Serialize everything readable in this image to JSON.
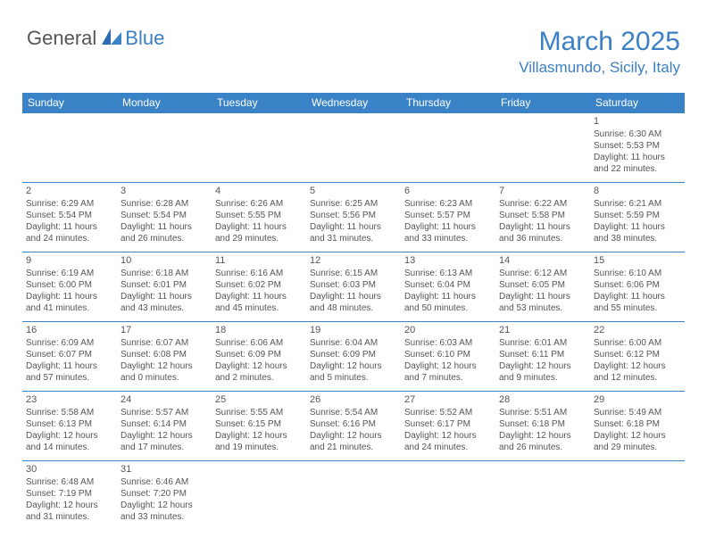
{
  "logo": {
    "general": "General",
    "blue": "Blue"
  },
  "title": "March 2025",
  "location": "Villasmundo, Sicily, Italy",
  "colors": {
    "header_bg": "#3b83c7",
    "header_text": "#ffffff",
    "accent": "#3b7fc4",
    "border": "#3b83c7",
    "body_text": "#555555"
  },
  "weekdays": [
    "Sunday",
    "Monday",
    "Tuesday",
    "Wednesday",
    "Thursday",
    "Friday",
    "Saturday"
  ],
  "days": {
    "1": {
      "sunrise": "Sunrise: 6:30 AM",
      "sunset": "Sunset: 5:53 PM",
      "day1": "Daylight: 11 hours",
      "day2": "and 22 minutes."
    },
    "2": {
      "sunrise": "Sunrise: 6:29 AM",
      "sunset": "Sunset: 5:54 PM",
      "day1": "Daylight: 11 hours",
      "day2": "and 24 minutes."
    },
    "3": {
      "sunrise": "Sunrise: 6:28 AM",
      "sunset": "Sunset: 5:54 PM",
      "day1": "Daylight: 11 hours",
      "day2": "and 26 minutes."
    },
    "4": {
      "sunrise": "Sunrise: 6:26 AM",
      "sunset": "Sunset: 5:55 PM",
      "day1": "Daylight: 11 hours",
      "day2": "and 29 minutes."
    },
    "5": {
      "sunrise": "Sunrise: 6:25 AM",
      "sunset": "Sunset: 5:56 PM",
      "day1": "Daylight: 11 hours",
      "day2": "and 31 minutes."
    },
    "6": {
      "sunrise": "Sunrise: 6:23 AM",
      "sunset": "Sunset: 5:57 PM",
      "day1": "Daylight: 11 hours",
      "day2": "and 33 minutes."
    },
    "7": {
      "sunrise": "Sunrise: 6:22 AM",
      "sunset": "Sunset: 5:58 PM",
      "day1": "Daylight: 11 hours",
      "day2": "and 36 minutes."
    },
    "8": {
      "sunrise": "Sunrise: 6:21 AM",
      "sunset": "Sunset: 5:59 PM",
      "day1": "Daylight: 11 hours",
      "day2": "and 38 minutes."
    },
    "9": {
      "sunrise": "Sunrise: 6:19 AM",
      "sunset": "Sunset: 6:00 PM",
      "day1": "Daylight: 11 hours",
      "day2": "and 41 minutes."
    },
    "10": {
      "sunrise": "Sunrise: 6:18 AM",
      "sunset": "Sunset: 6:01 PM",
      "day1": "Daylight: 11 hours",
      "day2": "and 43 minutes."
    },
    "11": {
      "sunrise": "Sunrise: 6:16 AM",
      "sunset": "Sunset: 6:02 PM",
      "day1": "Daylight: 11 hours",
      "day2": "and 45 minutes."
    },
    "12": {
      "sunrise": "Sunrise: 6:15 AM",
      "sunset": "Sunset: 6:03 PM",
      "day1": "Daylight: 11 hours",
      "day2": "and 48 minutes."
    },
    "13": {
      "sunrise": "Sunrise: 6:13 AM",
      "sunset": "Sunset: 6:04 PM",
      "day1": "Daylight: 11 hours",
      "day2": "and 50 minutes."
    },
    "14": {
      "sunrise": "Sunrise: 6:12 AM",
      "sunset": "Sunset: 6:05 PM",
      "day1": "Daylight: 11 hours",
      "day2": "and 53 minutes."
    },
    "15": {
      "sunrise": "Sunrise: 6:10 AM",
      "sunset": "Sunset: 6:06 PM",
      "day1": "Daylight: 11 hours",
      "day2": "and 55 minutes."
    },
    "16": {
      "sunrise": "Sunrise: 6:09 AM",
      "sunset": "Sunset: 6:07 PM",
      "day1": "Daylight: 11 hours",
      "day2": "and 57 minutes."
    },
    "17": {
      "sunrise": "Sunrise: 6:07 AM",
      "sunset": "Sunset: 6:08 PM",
      "day1": "Daylight: 12 hours",
      "day2": "and 0 minutes."
    },
    "18": {
      "sunrise": "Sunrise: 6:06 AM",
      "sunset": "Sunset: 6:09 PM",
      "day1": "Daylight: 12 hours",
      "day2": "and 2 minutes."
    },
    "19": {
      "sunrise": "Sunrise: 6:04 AM",
      "sunset": "Sunset: 6:09 PM",
      "day1": "Daylight: 12 hours",
      "day2": "and 5 minutes."
    },
    "20": {
      "sunrise": "Sunrise: 6:03 AM",
      "sunset": "Sunset: 6:10 PM",
      "day1": "Daylight: 12 hours",
      "day2": "and 7 minutes."
    },
    "21": {
      "sunrise": "Sunrise: 6:01 AM",
      "sunset": "Sunset: 6:11 PM",
      "day1": "Daylight: 12 hours",
      "day2": "and 9 minutes."
    },
    "22": {
      "sunrise": "Sunrise: 6:00 AM",
      "sunset": "Sunset: 6:12 PM",
      "day1": "Daylight: 12 hours",
      "day2": "and 12 minutes."
    },
    "23": {
      "sunrise": "Sunrise: 5:58 AM",
      "sunset": "Sunset: 6:13 PM",
      "day1": "Daylight: 12 hours",
      "day2": "and 14 minutes."
    },
    "24": {
      "sunrise": "Sunrise: 5:57 AM",
      "sunset": "Sunset: 6:14 PM",
      "day1": "Daylight: 12 hours",
      "day2": "and 17 minutes."
    },
    "25": {
      "sunrise": "Sunrise: 5:55 AM",
      "sunset": "Sunset: 6:15 PM",
      "day1": "Daylight: 12 hours",
      "day2": "and 19 minutes."
    },
    "26": {
      "sunrise": "Sunrise: 5:54 AM",
      "sunset": "Sunset: 6:16 PM",
      "day1": "Daylight: 12 hours",
      "day2": "and 21 minutes."
    },
    "27": {
      "sunrise": "Sunrise: 5:52 AM",
      "sunset": "Sunset: 6:17 PM",
      "day1": "Daylight: 12 hours",
      "day2": "and 24 minutes."
    },
    "28": {
      "sunrise": "Sunrise: 5:51 AM",
      "sunset": "Sunset: 6:18 PM",
      "day1": "Daylight: 12 hours",
      "day2": "and 26 minutes."
    },
    "29": {
      "sunrise": "Sunrise: 5:49 AM",
      "sunset": "Sunset: 6:18 PM",
      "day1": "Daylight: 12 hours",
      "day2": "and 29 minutes."
    },
    "30": {
      "sunrise": "Sunrise: 6:48 AM",
      "sunset": "Sunset: 7:19 PM",
      "day1": "Daylight: 12 hours",
      "day2": "and 31 minutes."
    },
    "31": {
      "sunrise": "Sunrise: 6:46 AM",
      "sunset": "Sunset: 7:20 PM",
      "day1": "Daylight: 12 hours",
      "day2": "and 33 minutes."
    }
  }
}
